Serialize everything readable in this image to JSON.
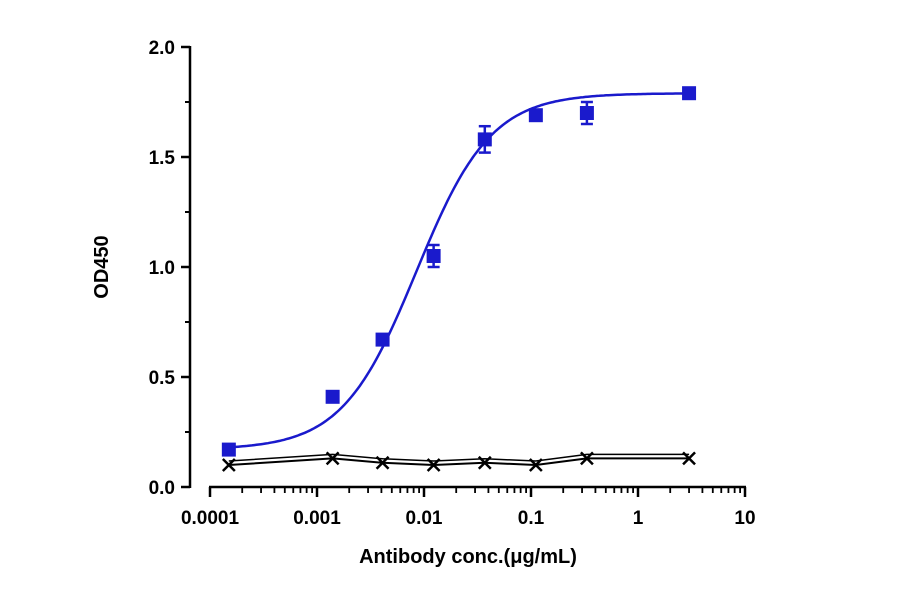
{
  "chart_data": {
    "type": "scatter",
    "xlabel": "Antibody conc.(μg/mL)",
    "ylabel": "OD450",
    "xscale": "log",
    "xlim": [
      0.0001,
      10
    ],
    "ylim": [
      0,
      2.0
    ],
    "x_tick_labels": [
      "0.0001",
      "0.001",
      "0.01",
      "0.1",
      "1",
      "10"
    ],
    "x_tick_values": [
      0.0001,
      0.001,
      0.01,
      0.1,
      1,
      10
    ],
    "y_tick_labels": [
      "0.0",
      "0.5",
      "1.0",
      "1.5",
      "2.0"
    ],
    "y_tick_values": [
      0,
      0.5,
      1.0,
      1.5,
      2.0
    ],
    "grid": false,
    "legend": "none",
    "series": [
      {
        "marker": "square",
        "color": "#1a1acc",
        "fit": "four-parameter logistic",
        "x": [
          0.00015,
          0.0014,
          0.0041,
          0.0123,
          0.037,
          0.111,
          0.333,
          3.0
        ],
        "y": [
          0.17,
          0.41,
          0.67,
          1.05,
          1.58,
          1.69,
          1.7,
          1.79
        ],
        "error": [
          0.02,
          0.02,
          0.02,
          0.05,
          0.06,
          0.02,
          0.05,
          0.02
        ]
      },
      {
        "marker": "x",
        "color": "#000000",
        "line": "connected",
        "x": [
          0.00015,
          0.0014,
          0.0041,
          0.0123,
          0.037,
          0.111,
          0.333,
          3.0
        ],
        "y": [
          0.1,
          0.13,
          0.11,
          0.1,
          0.11,
          0.1,
          0.13,
          0.13
        ]
      }
    ]
  }
}
